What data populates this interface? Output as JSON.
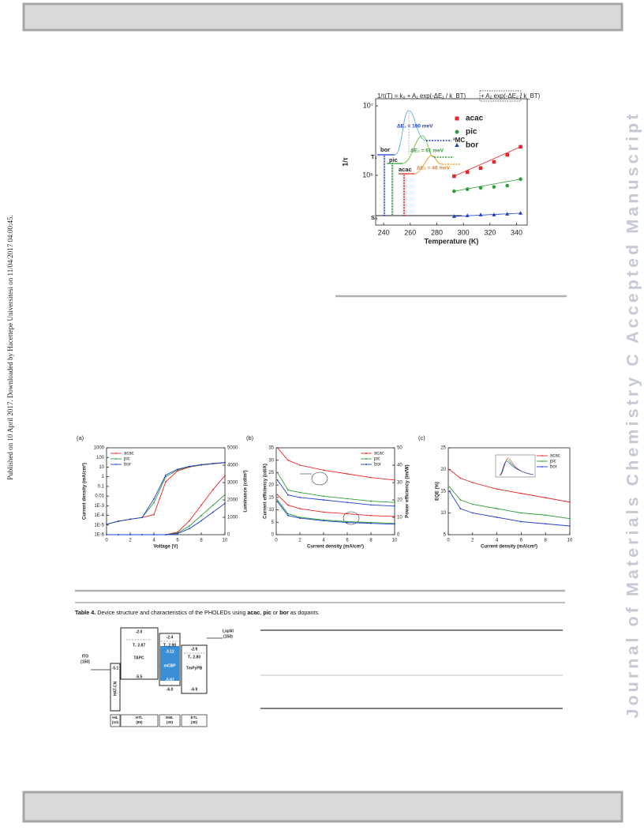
{
  "sidebar": "Published on 10 April 2017. Downloaded by Hacettepe Universitesi on 11/04/2017 04:00:45.",
  "watermark": "Journal of Materials Chemistry C Accepted Manuscript",
  "chart_data": [
    {
      "type": "scatter",
      "x_label": "Temperature (K)",
      "y_label": "1/τ",
      "xlim": [
        234,
        348
      ],
      "xticks": [
        240,
        260,
        280,
        300,
        320,
        340
      ],
      "ylim": [
        192000,
        12650000
      ],
      "log_y": true,
      "yticks": [
        {
          "value": 10000000,
          "label": "10⁷"
        },
        {
          "value": 1000000,
          "label": "10⁶"
        }
      ],
      "legend": "upper right",
      "x": [
        293,
        303,
        313,
        323,
        333,
        343
      ],
      "series": [
        {
          "name": "acac",
          "color": "#e8262a",
          "marker": "square",
          "values": [
            970000,
            1110000,
            1270000,
            1560000,
            1970000,
            2570000
          ]
        },
        {
          "name": "pic",
          "color": "#2e9e3a",
          "marker": "circle",
          "values": [
            590000,
            630000,
            660000,
            680000,
            710000,
            880000
          ]
        },
        {
          "name": "bor",
          "color": "#1f3fd0",
          "marker": "triangle",
          "values": [
            256000,
            263000,
            270000,
            270000,
            277000,
            285000
          ]
        }
      ],
      "annotations": [
        "1/τ(T) = k₀ + A₁ exp(-ΔE₁ / k_BT)",
        "+ A₂ exp(-ΔE₂ / k_BT)",
        "ΔE₁ = 100 meV",
        "ΔE₂ = 61 meV",
        "ΔE₂ = 46 meV",
        "³MC",
        "bor",
        "pic",
        "acac",
        "T₁",
        "S₀"
      ]
    },
    {
      "type": "line",
      "title": "(a)",
      "x_label": "Voltage (V)",
      "y_label": "Current density (mA/cm²)",
      "y2_label": "Luminance (cd/m²)",
      "xlim": [
        0,
        10
      ],
      "xticks": [
        0,
        2,
        4,
        6,
        8,
        10
      ],
      "ylim": [
        1e-06,
        1000
      ],
      "log_y": true,
      "yticks": [
        1000,
        100,
        10,
        1,
        0.1,
        0.01,
        {
          "value": 0.001,
          "label": "1E-3"
        },
        {
          "value": 0.0001,
          "label": "1E-4"
        },
        {
          "value": 1e-05,
          "label": "1E-5"
        },
        {
          "value": 1e-06,
          "label": "1E-6"
        }
      ],
      "y2lim": [
        0,
        5000
      ],
      "y2ticks": [
        0,
        1000,
        2000,
        3000,
        4000,
        5000
      ],
      "legend": "upper left",
      "x": [
        0,
        1,
        2,
        3,
        4,
        5,
        6,
        7,
        8,
        9,
        10
      ],
      "series": [
        {
          "name": "acac",
          "color": "#e8262a",
          "values": [
            1.2e-05,
            2.5e-05,
            4e-05,
            6e-05,
            0.00012,
            0.3,
            4,
            10,
            16,
            22,
            28
          ]
        },
        {
          "name": "pic",
          "color": "#2e9e3a",
          "values": [
            1.2e-05,
            2.5e-05,
            4e-05,
            6e-05,
            0.002,
            1,
            5,
            11,
            17,
            23,
            29
          ]
        },
        {
          "name": "bor",
          "color": "#1f3fd0",
          "values": [
            1.2e-05,
            2.5e-05,
            4e-05,
            6e-05,
            0.005,
            1.5,
            6,
            12,
            18,
            24,
            30
          ]
        },
        {
          "color": "#e8262a",
          "axis": "y2",
          "values": [
            0,
            0,
            0,
            0,
            0,
            0,
            150,
            800,
            1700,
            2600,
            3400
          ]
        },
        {
          "color": "#2e9e3a",
          "axis": "y2",
          "values": [
            0,
            0,
            0,
            0,
            0,
            0,
            100,
            500,
            1100,
            1700,
            2300
          ]
        },
        {
          "color": "#1f3fd0",
          "axis": "y2",
          "values": [
            0,
            0,
            0,
            0,
            0,
            0,
            60,
            350,
            800,
            1300,
            1800
          ]
        }
      ]
    },
    {
      "type": "line",
      "title": "(b)",
      "x_label": "Current density (mA/cm²)",
      "y_label": "Current efficiency (cd/A)",
      "y2_label": "Power efficiency (lm/W)",
      "xlim": [
        0,
        10
      ],
      "xticks": [
        0,
        2,
        4,
        6,
        8,
        10
      ],
      "ylim": [
        0,
        35
      ],
      "yticks": [
        0,
        5,
        10,
        15,
        20,
        25,
        30,
        35
      ],
      "y2lim": [
        0,
        50
      ],
      "y2ticks": [
        0,
        10,
        20,
        30,
        40,
        50
      ],
      "legend": "upper right",
      "x": [
        0.1,
        1,
        2,
        4,
        6,
        8,
        10
      ],
      "series": [
        {
          "name": "acac",
          "color": "#e8262a",
          "values": [
            35,
            30,
            28,
            26,
            24.5,
            23,
            22
          ]
        },
        {
          "name": "pic",
          "color": "#2e9e3a",
          "values": [
            25,
            18,
            17,
            15.5,
            14.5,
            13.5,
            13
          ]
        },
        {
          "name": "bor",
          "color": "#1f3fd0",
          "values": [
            22,
            16,
            15,
            14,
            13,
            12,
            11.5
          ]
        },
        {
          "color": "#e8262a",
          "axis": "y2",
          "values": [
            23,
            17,
            15,
            13,
            12,
            11,
            10.5
          ]
        },
        {
          "color": "#2e9e3a",
          "axis": "y2",
          "values": [
            20,
            12,
            10,
            8.5,
            7.5,
            7,
            6.5
          ]
        },
        {
          "color": "#1f3fd0",
          "axis": "y2",
          "values": [
            19,
            11,
            9.5,
            8,
            7,
            6.5,
            6
          ]
        }
      ]
    },
    {
      "type": "line",
      "title": "(c)",
      "x_label": "Current density (mA/cm²)",
      "y_label": "EQE (%)",
      "xlim": [
        0,
        10
      ],
      "xticks": [
        0,
        2,
        4,
        6,
        8,
        10
      ],
      "ylim": [
        5,
        25
      ],
      "yticks": [
        5,
        10,
        15,
        20,
        25
      ],
      "legend": "upper right",
      "x": [
        0.1,
        1,
        2,
        4,
        6,
        8,
        10
      ],
      "series": [
        {
          "name": "acac",
          "color": "#e8262a",
          "values": [
            20,
            18,
            17,
            15.5,
            14.5,
            13.5,
            12.5
          ]
        },
        {
          "name": "pic",
          "color": "#2e9e3a",
          "values": [
            16,
            13,
            12,
            11,
            10,
            9.5,
            8.7
          ]
        },
        {
          "name": "bor",
          "color": "#1f3fd0",
          "values": [
            15,
            11,
            10,
            9,
            8,
            7.5,
            7
          ]
        }
      ]
    }
  ],
  "table_caption": [
    {
      "text": "Table 4.",
      "bold": true
    },
    {
      "text": " Device structure and characteristics of the PHOLEDs using ",
      "bold": false
    },
    {
      "text": "acac",
      "bold": true
    },
    {
      "text": ", ",
      "bold": false
    },
    {
      "text": "pic",
      "bold": true
    },
    {
      "text": " or ",
      "bold": false
    },
    {
      "text": "bor",
      "bold": true
    },
    {
      "text": " as dopants.",
      "bold": false
    }
  ],
  "device": {
    "labels": [
      "-2.0",
      "T₁ 2.87",
      "TAPC",
      "-5.5",
      "-2.4",
      "T₁ 2.90",
      "-3.12",
      "mCBP",
      "-5.97",
      "-6.0",
      "-2.9",
      "T₁ 2.80",
      "TmPyPB",
      "-6.9",
      "ITO",
      "(150)",
      "-5.1",
      "HAT-CN",
      "Liq/Al",
      "(150)"
    ],
    "layers": [
      [
        "HIL",
        "(10)"
      ],
      [
        "HTL",
        "(85)"
      ],
      [
        "EML",
        "(30)"
      ],
      [
        "ETL",
        "(30)"
      ]
    ]
  }
}
